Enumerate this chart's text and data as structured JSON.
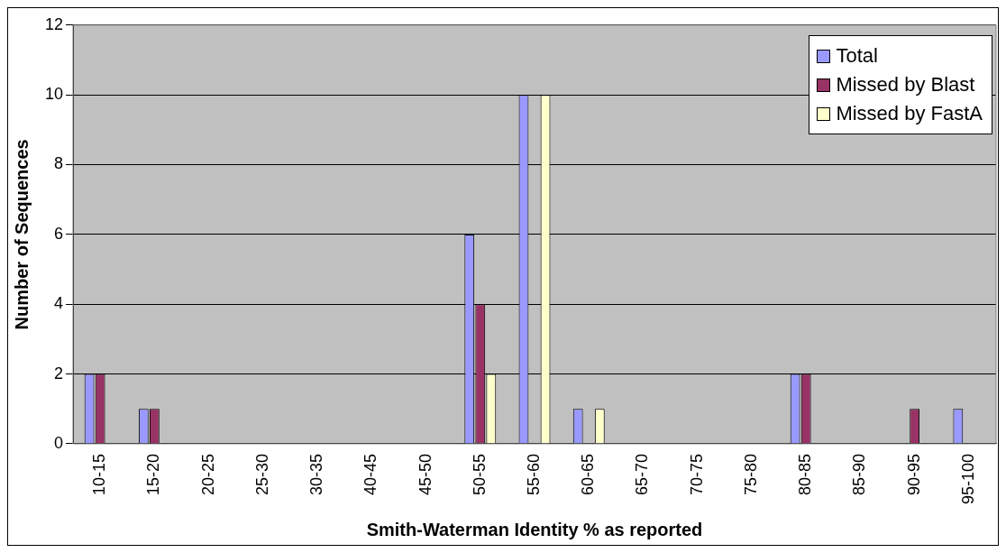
{
  "chart_data": {
    "type": "bar",
    "xlabel": "Smith-Waterman Identity % as reported",
    "ylabel": "Number of Sequences",
    "categories": [
      "10-15",
      "15-20",
      "20-25",
      "25-30",
      "30-35",
      "40-45",
      "45-50",
      "50-55",
      "55-60",
      "60-65",
      "65-70",
      "70-75",
      "75-80",
      "80-85",
      "85-90",
      "90-95",
      "95-100"
    ],
    "series": [
      {
        "name": "Total",
        "color": "#9999ff",
        "values": [
          2,
          1,
          0,
          0,
          0,
          0,
          0,
          6,
          10,
          1,
          0,
          0,
          0,
          2,
          0,
          0,
          1
        ]
      },
      {
        "name": "Missed by Blast",
        "color": "#993366",
        "values": [
          2,
          1,
          0,
          0,
          0,
          0,
          0,
          4,
          0,
          0,
          0,
          0,
          0,
          2,
          0,
          1,
          0
        ]
      },
      {
        "name": "Missed by FastA",
        "color": "#ffffcc",
        "values": [
          0,
          0,
          0,
          0,
          0,
          0,
          0,
          2,
          10,
          1,
          0,
          0,
          0,
          0,
          0,
          0,
          0
        ]
      }
    ],
    "ylim": [
      0,
      12
    ],
    "yticks": [
      0,
      2,
      4,
      6,
      8,
      10,
      12
    ],
    "grid": "y",
    "legend": "top right"
  }
}
